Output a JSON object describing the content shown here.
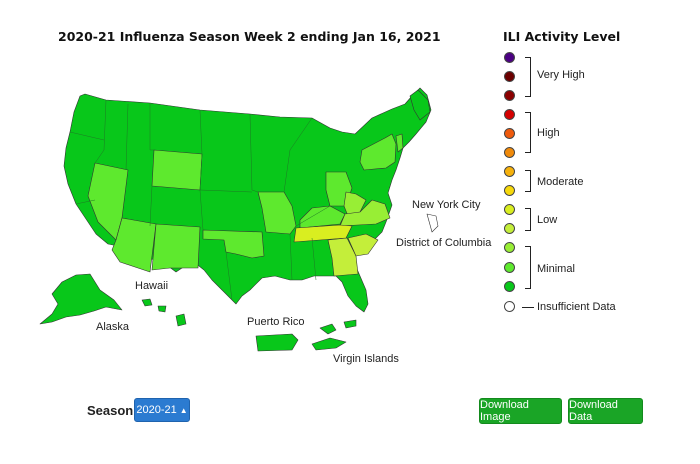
{
  "title": "2020-21 Influenza Season Week 2 ending Jan 16, 2021",
  "map_labels": {
    "new_york_city": "New York City",
    "district_of_columbia": "District of Columbia",
    "hawaii": "Hawaii",
    "alaska": "Alaska",
    "puerto_rico": "Puerto Rico",
    "virgin_islands": "Virgin Islands"
  },
  "legend": {
    "title": "ILI Activity Level",
    "levels": [
      {
        "level": 13,
        "color": "#4b0082"
      },
      {
        "level": 12,
        "color": "#6b0000"
      },
      {
        "level": 11,
        "color": "#8b0000"
      },
      {
        "level": 10,
        "color": "#d40000"
      },
      {
        "level": 9,
        "color": "#ee5a0c"
      },
      {
        "level": 8,
        "color": "#f08a0a"
      },
      {
        "level": 7,
        "color": "#f6b10b"
      },
      {
        "level": 6,
        "color": "#f6d80b"
      },
      {
        "level": 5,
        "color": "#d9ee20"
      },
      {
        "level": 4,
        "color": "#c4ee3a"
      },
      {
        "level": 3,
        "color": "#98ee35"
      },
      {
        "level": 2,
        "color": "#5ee92e"
      },
      {
        "level": 1,
        "color": "#08c71a"
      }
    ],
    "groups": {
      "very_high": "Very High",
      "high": "High",
      "moderate": "Moderate",
      "low": "Low",
      "minimal": "Minimal"
    },
    "insufficient": {
      "label": "Insufficient Data",
      "color": "#ffffff"
    }
  },
  "state_levels": {
    "default": {
      "level": 1,
      "color": "#08c71a"
    },
    "minimal_2": {
      "level": 2,
      "color": "#5ee92e",
      "states": [
        "NV",
        "AZ",
        "NM",
        "WY",
        "OK",
        "MO",
        "OH",
        "NY",
        "VT",
        "KY"
      ]
    },
    "minimal_3": {
      "level": 3,
      "color": "#98ee35",
      "states": [
        "VA",
        "WV"
      ]
    },
    "low_4": {
      "level": 4,
      "color": "#c4ee3a",
      "states": [
        "GA",
        "SC"
      ]
    },
    "low_5": {
      "level": 5,
      "color": "#d9ee20",
      "states": [
        "TN"
      ]
    },
    "insufficient": {
      "color": "#ffffff",
      "states": [
        "New York City"
      ]
    }
  },
  "season": {
    "label": "Season:",
    "value": "2020-21"
  },
  "buttons": {
    "download_image": "Download Image",
    "download_data": "Download Data"
  }
}
